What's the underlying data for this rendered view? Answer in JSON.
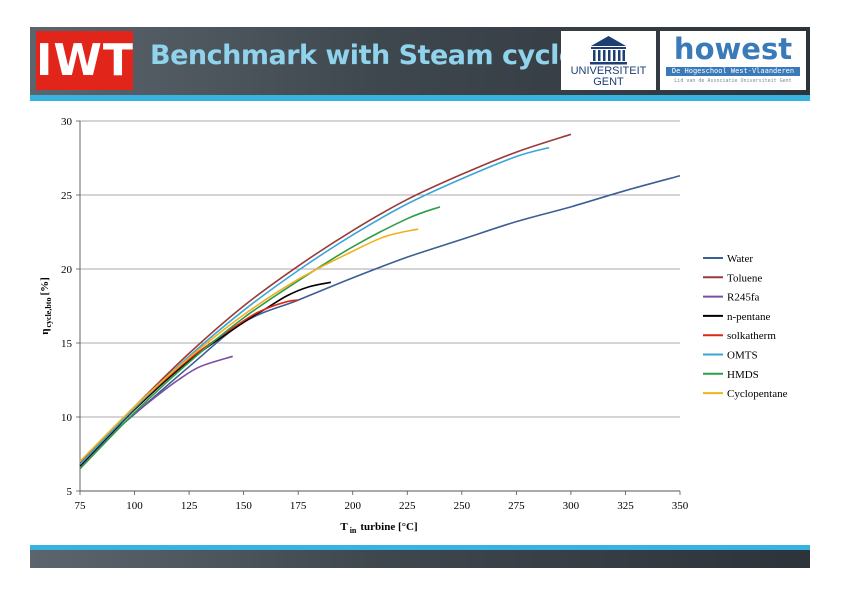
{
  "header": {
    "title": "Benchmark with Steam  cycle",
    "logos": {
      "iwt": "IWT",
      "ugent_line1": "UNIVERSITEIT",
      "ugent_line2": "GENT",
      "howest": "howest",
      "howest_tagline": "De Hogeschool West-Vlaanderen",
      "howest_subline": "Lid van de Associatie Universiteit Gent"
    },
    "colors": {
      "accent": "#36b3e0",
      "iwt_red": "#e1251b",
      "title_text": "#8fd3ec"
    }
  },
  "chart_data": {
    "type": "line",
    "title": "",
    "xlabel": "T",
    "xlabel_sub": "in",
    "xlabel_rest": "turbine [°C]",
    "ylabel": "η",
    "ylabel_sub": "cycle,bto",
    "ylabel_rest": "[%]",
    "xlim": [
      75,
      350
    ],
    "ylim": [
      5,
      30
    ],
    "xticks": [
      75,
      100,
      125,
      150,
      175,
      200,
      225,
      250,
      275,
      300,
      325,
      350
    ],
    "yticks": [
      5,
      10,
      15,
      20,
      25,
      30
    ],
    "grid": "horizontal",
    "legend": "right",
    "series": [
      {
        "name": "Water",
        "color": "#3b5f95",
        "x": [
          75,
          90,
          100,
          125,
          150,
          175,
          200,
          225,
          250,
          275,
          300,
          325,
          350
        ],
        "y": [
          6.7,
          8.9,
          10.2,
          13.4,
          16.4,
          17.9,
          19.4,
          20.8,
          22.0,
          23.2,
          24.2,
          25.3,
          26.3
        ]
      },
      {
        "name": "Toluene",
        "color": "#9b3a3a",
        "x": [
          75,
          100,
          125,
          150,
          175,
          200,
          225,
          250,
          275,
          300
        ],
        "y": [
          6.9,
          10.7,
          14.3,
          17.5,
          20.2,
          22.6,
          24.7,
          26.4,
          27.9,
          29.1
        ]
      },
      {
        "name": "R245fa",
        "color": "#7a4ea1",
        "x": [
          75,
          90,
          100,
          110,
          120,
          130,
          145
        ],
        "y": [
          6.6,
          8.9,
          10.2,
          11.4,
          12.5,
          13.4,
          14.1
        ]
      },
      {
        "name": "n-pentane",
        "color": "#000000",
        "x": [
          75,
          100,
          125,
          150,
          160,
          170,
          180,
          190
        ],
        "y": [
          6.7,
          10.5,
          13.8,
          16.4,
          17.3,
          18.2,
          18.8,
          19.1
        ]
      },
      {
        "name": "solkatherm",
        "color": "#e0261b",
        "x": [
          75,
          100,
          125,
          150,
          160,
          170,
          175
        ],
        "y": [
          6.8,
          10.6,
          13.9,
          16.5,
          17.3,
          17.8,
          17.9
        ]
      },
      {
        "name": "OMTS",
        "color": "#3aa6d8",
        "x": [
          75,
          100,
          125,
          150,
          175,
          200,
          225,
          250,
          275,
          290
        ],
        "y": [
          6.8,
          10.6,
          14.1,
          17.2,
          19.9,
          22.3,
          24.4,
          26.1,
          27.6,
          28.2
        ]
      },
      {
        "name": "HMDS",
        "color": "#2e9e48",
        "x": [
          75,
          100,
          125,
          150,
          175,
          200,
          225,
          240
        ],
        "y": [
          6.5,
          10.3,
          13.7,
          16.7,
          19.2,
          21.5,
          23.4,
          24.2
        ]
      },
      {
        "name": "Cyclopentane",
        "color": "#f2b01e",
        "x": [
          75,
          100,
          125,
          150,
          175,
          200,
          215,
          230
        ],
        "y": [
          7.0,
          10.7,
          14.0,
          16.9,
          19.3,
          21.2,
          22.2,
          22.7
        ]
      }
    ]
  }
}
